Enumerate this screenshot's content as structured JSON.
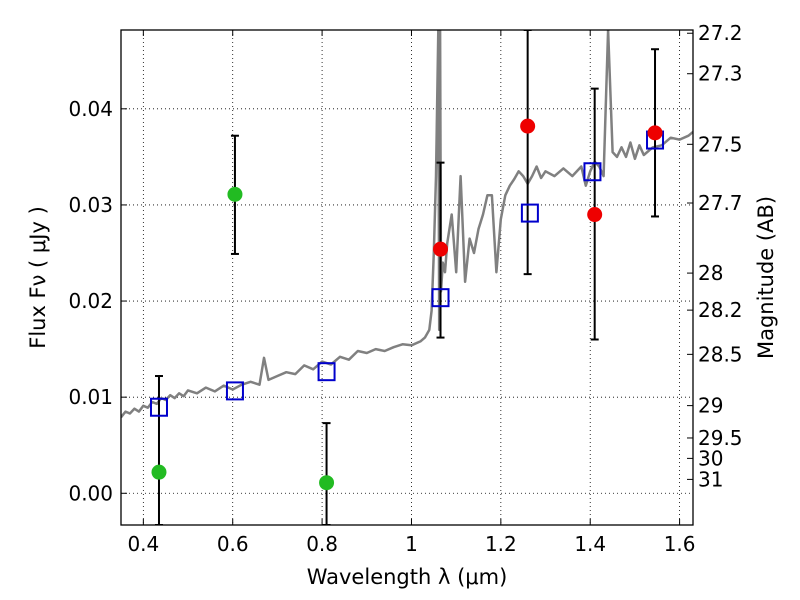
{
  "chart_data": {
    "type": "scatter",
    "xlabel": "Wavelength  λ (μm)",
    "ylabel": "Flux  Fν  ( μJy )",
    "ylabel_right": "Magnitude (AB)",
    "xlim": [
      0.35,
      1.63
    ],
    "ylim": [
      -0.0033,
      0.0482
    ],
    "grid": true,
    "x_ticks": [
      0.4,
      0.6,
      0.8,
      1.0,
      1.2,
      1.4,
      1.6
    ],
    "x_tick_labels": [
      "0.4",
      "0.6",
      "0.8",
      "1",
      "1.2",
      "1.4",
      "1.6"
    ],
    "y_ticks": [
      0.0,
      0.01,
      0.02,
      0.03,
      0.04
    ],
    "y_tick_labels": [
      "0.00",
      "0.01",
      "0.02",
      "0.03",
      "0.04"
    ],
    "mag_ticks": [
      "27.2",
      "27.3",
      "27.5",
      "27.7",
      "28",
      "28.2",
      "28.5",
      "29",
      "29.5",
      "30",
      "31"
    ],
    "colors": {
      "model": "#808080",
      "model_points": "#0000cc",
      "green_points": "#22bb22",
      "red_points": "#ee0000",
      "errorbars": "#000000"
    },
    "series": [
      {
        "kind": "line",
        "color": "#808080",
        "x": [
          0.35,
          0.36,
          0.37,
          0.38,
          0.39,
          0.4,
          0.41,
          0.42,
          0.43,
          0.44,
          0.45,
          0.46,
          0.47,
          0.48,
          0.49,
          0.5,
          0.52,
          0.54,
          0.56,
          0.58,
          0.6,
          0.62,
          0.64,
          0.66,
          0.67,
          0.68,
          0.7,
          0.72,
          0.74,
          0.76,
          0.78,
          0.8,
          0.82,
          0.84,
          0.86,
          0.88,
          0.9,
          0.92,
          0.94,
          0.96,
          0.98,
          1.0,
          1.02,
          1.03,
          1.04,
          1.045,
          1.05,
          1.055,
          1.06,
          1.062,
          1.064,
          1.066,
          1.07,
          1.075,
          1.08,
          1.09,
          1.1,
          1.11,
          1.12,
          1.13,
          1.14,
          1.15,
          1.16,
          1.17,
          1.18,
          1.19,
          1.2,
          1.21,
          1.22,
          1.23,
          1.24,
          1.25,
          1.26,
          1.27,
          1.28,
          1.29,
          1.3,
          1.32,
          1.34,
          1.36,
          1.38,
          1.39,
          1.4,
          1.41,
          1.42,
          1.43,
          1.44,
          1.45,
          1.46,
          1.47,
          1.48,
          1.49,
          1.5,
          1.51,
          1.52,
          1.54,
          1.56,
          1.58,
          1.6,
          1.62,
          1.63
        ],
        "y": [
          0.0079,
          0.0085,
          0.0083,
          0.0088,
          0.0085,
          0.0091,
          0.0089,
          0.0095,
          0.0093,
          0.0099,
          0.0097,
          0.0102,
          0.0099,
          0.0104,
          0.0101,
          0.0107,
          0.0104,
          0.011,
          0.0106,
          0.0112,
          0.0108,
          0.0113,
          0.0116,
          0.0113,
          0.0141,
          0.0118,
          0.0122,
          0.0126,
          0.0124,
          0.0133,
          0.0129,
          0.0137,
          0.0134,
          0.0142,
          0.0139,
          0.0148,
          0.0146,
          0.015,
          0.0148,
          0.0152,
          0.0155,
          0.0154,
          0.0158,
          0.0162,
          0.017,
          0.019,
          0.025,
          0.033,
          0.0482,
          0.017,
          0.0482,
          0.021,
          0.024,
          0.023,
          0.026,
          0.029,
          0.023,
          0.033,
          0.022,
          0.0265,
          0.025,
          0.0275,
          0.029,
          0.031,
          0.031,
          0.023,
          0.0285,
          0.031,
          0.032,
          0.0327,
          0.0335,
          0.033,
          0.0322,
          0.033,
          0.034,
          0.0328,
          0.0335,
          0.033,
          0.0338,
          0.033,
          0.034,
          0.032,
          0.0335,
          0.0345,
          0.034,
          0.033,
          0.0482,
          0.0355,
          0.035,
          0.036,
          0.035,
          0.0365,
          0.0348,
          0.0362,
          0.0352,
          0.036,
          0.0362,
          0.037,
          0.0368,
          0.0372,
          0.0376
        ]
      },
      {
        "kind": "points",
        "marker": "open-square",
        "color": "#0000cc",
        "x": [
          0.435,
          0.605,
          0.81,
          1.065,
          1.265,
          1.405,
          1.545
        ],
        "y": [
          0.0089,
          0.0106,
          0.0126,
          0.0203,
          0.0291,
          0.0334,
          0.0367
        ]
      },
      {
        "kind": "points",
        "marker": "filled-circle",
        "color": "#22bb22",
        "x": [
          0.435,
          0.605,
          0.81
        ],
        "y": [
          0.0022,
          0.0311,
          0.0011
        ],
        "yerr_low": [
          -0.0033,
          0.0249,
          -0.0033
        ],
        "yerr_high": [
          0.0122,
          0.0372,
          0.0073
        ]
      },
      {
        "kind": "points",
        "marker": "filled-circle",
        "color": "#ee0000",
        "x": [
          1.065,
          1.26,
          1.41,
          1.545
        ],
        "y": [
          0.0254,
          0.0382,
          0.029,
          0.0375
        ],
        "yerr_low": [
          0.0162,
          0.0228,
          0.016,
          0.0288
        ],
        "yerr_high": [
          0.0344,
          0.0482,
          0.0421,
          0.0462
        ]
      }
    ]
  }
}
